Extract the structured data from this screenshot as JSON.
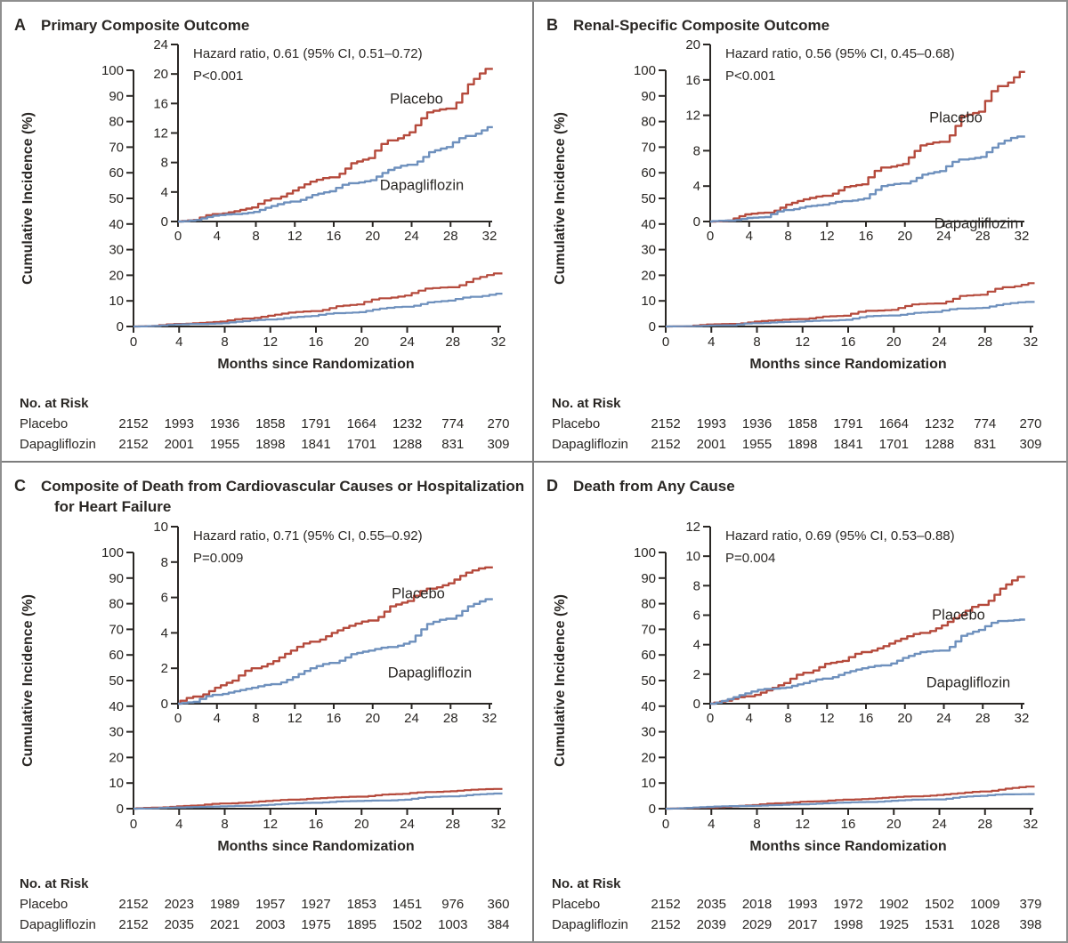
{
  "figure": {
    "y_axis_label": "Cumulative Incidence (%)",
    "x_axis_label": "Months since Randomization",
    "risk_header": "No. at Risk",
    "colors": {
      "placebo": "#b54a3c",
      "dapagliflozin": "#6e90bd",
      "text": "#2a2724",
      "axis": "#2a2724",
      "divider": "#7d7d7d",
      "border": "#8f8f8f",
      "background": "#ffffff"
    },
    "x_ticks": [
      0,
      4,
      8,
      12,
      16,
      20,
      24,
      28,
      32
    ],
    "main_y_ticks": [
      0,
      10,
      20,
      30,
      40,
      50,
      60,
      70,
      80,
      90,
      100
    ]
  },
  "chart_data": [
    {
      "type": "line",
      "panel_letter": "A",
      "title_line1": "Primary Composite Outcome",
      "annotation": {
        "line1": "Hazard ratio, 0.61 (95% CI, 0.51–0.72)",
        "line2": "P<0.001"
      },
      "inset_y_ticks": [
        0,
        4,
        8,
        12,
        16,
        20,
        24
      ],
      "months": [
        0,
        2,
        4,
        6,
        8,
        10,
        12,
        14,
        16,
        18,
        20,
        22,
        24,
        26,
        28,
        30,
        32
      ],
      "series": [
        {
          "name": "Placebo",
          "values": [
            0,
            0.2,
            1.0,
            1.4,
            1.9,
            3.1,
            4.2,
            5.4,
            6.0,
            7.9,
            8.6,
            11.0,
            12.1,
            14.8,
            15.3,
            18.6,
            20.7
          ]
        },
        {
          "name": "Dapagliflozin",
          "values": [
            0,
            0.2,
            0.8,
            1.0,
            1.3,
            2.1,
            2.7,
            3.6,
            4.1,
            5.2,
            5.6,
            7.0,
            7.7,
            9.4,
            10.1,
            11.6,
            12.8
          ]
        }
      ],
      "risk_table": {
        "rows": [
          {
            "label": "Placebo",
            "values": [
              2152,
              1993,
              1936,
              1858,
              1791,
              1664,
              1232,
              774,
              270
            ]
          },
          {
            "label": "Dapagliflozin",
            "values": [
              2152,
              2001,
              1955,
              1898,
              1841,
              1701,
              1288,
              831,
              309
            ]
          }
        ]
      }
    },
    {
      "type": "line",
      "panel_letter": "B",
      "title_line1": "Renal-Specific Composite Outcome",
      "annotation": {
        "line1": "Hazard ratio, 0.56 (95% CI, 0.45–0.68)",
        "line2": "P<0.001"
      },
      "inset_y_ticks": [
        0,
        4,
        8,
        12,
        16,
        20
      ],
      "months": [
        0,
        2,
        4,
        6,
        8,
        10,
        12,
        14,
        16,
        18,
        20,
        22,
        24,
        26,
        28,
        30,
        32
      ],
      "series": [
        {
          "name": "Placebo",
          "values": [
            0,
            0.1,
            0.8,
            1.0,
            1.9,
            2.5,
            2.9,
            3.9,
            4.2,
            6.1,
            6.5,
            8.6,
            9.0,
            11.9,
            12.4,
            15.3,
            16.9
          ]
        },
        {
          "name": "Dapagliflozin",
          "values": [
            0,
            0.1,
            0.4,
            0.5,
            1.3,
            1.7,
            1.9,
            2.3,
            2.6,
            4.0,
            4.3,
            5.3,
            5.7,
            7.0,
            7.3,
            8.8,
            9.6
          ]
        }
      ],
      "risk_table": {
        "rows": [
          {
            "label": "Placebo",
            "values": [
              2152,
              1993,
              1936,
              1858,
              1791,
              1664,
              1232,
              774,
              270
            ]
          },
          {
            "label": "Dapagliflozin",
            "values": [
              2152,
              2001,
              1955,
              1898,
              1841,
              1701,
              1288,
              831,
              309
            ]
          }
        ]
      }
    },
    {
      "type": "line",
      "panel_letter": "C",
      "title_line1": "Composite of Death from Cardiovascular Causes or Hospitalization",
      "title_line2": "for Heart Failure",
      "annotation": {
        "line1": "Hazard ratio, 0.71 (95% CI, 0.55–0.92)",
        "line2": "P=0.009"
      },
      "inset_y_ticks": [
        0,
        2,
        4,
        6,
        8,
        10
      ],
      "months": [
        0,
        2,
        4,
        6,
        8,
        10,
        12,
        14,
        16,
        18,
        20,
        22,
        24,
        26,
        28,
        30,
        32
      ],
      "series": [
        {
          "name": "Placebo",
          "values": [
            0,
            0.4,
            0.9,
            1.3,
            2.0,
            2.4,
            3.0,
            3.5,
            4.0,
            4.4,
            4.7,
            5.5,
            5.8,
            6.5,
            6.8,
            7.4,
            7.7
          ]
        },
        {
          "name": "Dapagliflozin",
          "values": [
            0,
            0.1,
            0.5,
            0.7,
            0.9,
            1.1,
            1.5,
            2.0,
            2.3,
            2.8,
            3.0,
            3.2,
            3.5,
            4.5,
            4.8,
            5.5,
            5.9
          ]
        }
      ],
      "risk_table": {
        "rows": [
          {
            "label": "Placebo",
            "values": [
              2152,
              2023,
              1989,
              1957,
              1927,
              1853,
              1451,
              976,
              360
            ]
          },
          {
            "label": "Dapagliflozin",
            "values": [
              2152,
              2035,
              2021,
              2003,
              1975,
              1895,
              1502,
              1003,
              384
            ]
          }
        ]
      }
    },
    {
      "type": "line",
      "panel_letter": "D",
      "title_line1": "Death from Any Cause",
      "annotation": {
        "line1": "Hazard ratio, 0.69 (95% CI, 0.53–0.88)",
        "line2": "P=0.004"
      },
      "inset_y_ticks": [
        0,
        2,
        4,
        6,
        8,
        10,
        12
      ],
      "months": [
        0,
        2,
        4,
        6,
        8,
        10,
        12,
        14,
        16,
        18,
        20,
        22,
        24,
        26,
        28,
        30,
        32
      ],
      "series": [
        {
          "name": "Placebo",
          "values": [
            0,
            0.2,
            0.5,
            0.9,
            1.4,
            2.1,
            2.7,
            2.9,
            3.5,
            3.9,
            4.4,
            4.8,
            5.3,
            6.0,
            6.7,
            7.8,
            8.6
          ]
        },
        {
          "name": "Dapagliflozin",
          "values": [
            0,
            0.3,
            0.7,
            1.0,
            1.1,
            1.4,
            1.7,
            2.1,
            2.4,
            2.6,
            3.1,
            3.5,
            3.6,
            4.6,
            5.0,
            5.6,
            5.7
          ]
        }
      ],
      "risk_table": {
        "rows": [
          {
            "label": "Placebo",
            "values": [
              2152,
              2035,
              2018,
              1993,
              1972,
              1902,
              1502,
              1009,
              379
            ]
          },
          {
            "label": "Dapagliflozin",
            "values": [
              2152,
              2039,
              2029,
              2017,
              1998,
              1925,
              1531,
              1028,
              398
            ]
          }
        ]
      }
    }
  ]
}
